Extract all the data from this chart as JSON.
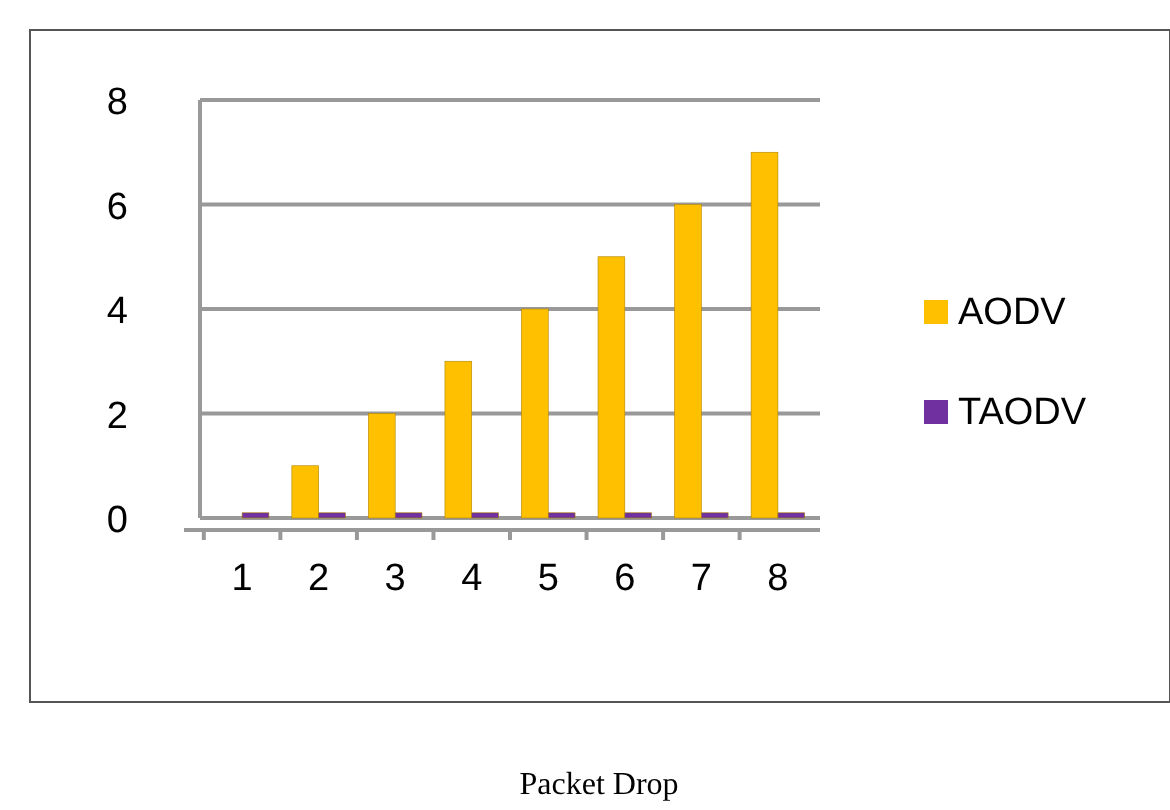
{
  "chart_data": {
    "type": "bar",
    "title": "Packet Drop",
    "categories": [
      "1",
      "2",
      "3",
      "4",
      "5",
      "6",
      "7",
      "8"
    ],
    "series": [
      {
        "name": "AODV",
        "color": "#ffc000",
        "values": [
          0,
          1,
          2,
          3,
          4,
          5,
          6,
          7
        ]
      },
      {
        "name": "TAODV",
        "color": "#7030a0",
        "values": [
          0.1,
          0.1,
          0.1,
          0.1,
          0.1,
          0.1,
          0.1,
          0.1
        ]
      }
    ],
    "ylim": [
      0,
      8
    ],
    "yticks": [
      0,
      2,
      4,
      6,
      8
    ],
    "grid": "y",
    "legend": "right"
  }
}
